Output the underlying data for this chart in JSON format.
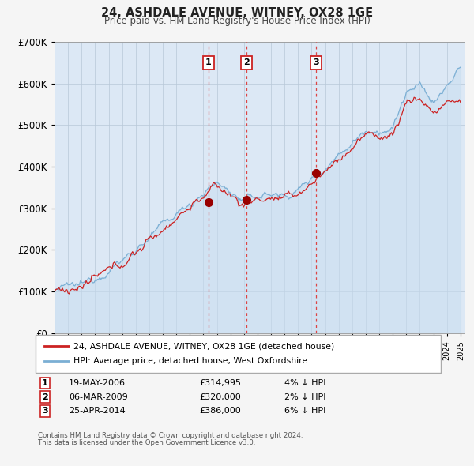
{
  "title": "24, ASHDALE AVENUE, WITNEY, OX28 1GE",
  "subtitle": "Price paid vs. HM Land Registry's House Price Index (HPI)",
  "hpi_color": "#7bafd4",
  "hpi_fill_color": "#c8ddf0",
  "price_color": "#cc2222",
  "sale_marker_color": "#990000",
  "vline_color": "#dd4444",
  "plot_bg_color": "#dce8f5",
  "grid_color": "#b8c8d8",
  "legend_text_1": "24, ASHDALE AVENUE, WITNEY, OX28 1GE (detached house)",
  "legend_text_2": "HPI: Average price, detached house, West Oxfordshire",
  "sales": [
    {
      "num": 1,
      "date_label": "19-MAY-2006",
      "price_label": "£314,995",
      "pct_label": "4% ↓ HPI",
      "year": 2006.38,
      "price": 314995
    },
    {
      "num": 2,
      "date_label": "06-MAR-2009",
      "price_label": "£320,000",
      "pct_label": "2% ↓ HPI",
      "year": 2009.18,
      "price": 320000
    },
    {
      "num": 3,
      "date_label": "25-APR-2014",
      "price_label": "£386,000",
      "pct_label": "6% ↓ HPI",
      "year": 2014.32,
      "price": 386000
    }
  ],
  "footnote_1": "Contains HM Land Registry data © Crown copyright and database right 2024.",
  "footnote_2": "This data is licensed under the Open Government Licence v3.0."
}
